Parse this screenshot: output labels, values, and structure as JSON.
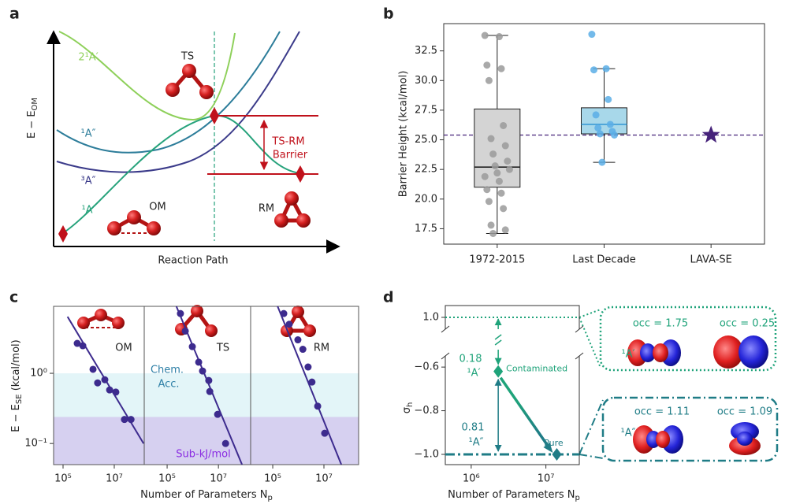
{
  "chart_data": [
    {
      "type": "diagram",
      "panel": "a",
      "xlabel": "Reaction Path",
      "ylabel": [
        "E − E",
        "OM"
      ],
      "state_labels": [
        "2¹A′",
        "¹A″",
        "³A″",
        "¹A′"
      ],
      "structure_labels": [
        "TS",
        "OM",
        "RM"
      ],
      "annotation": [
        "TS-RM",
        "Barrier"
      ]
    },
    {
      "type": "box",
      "panel": "b",
      "ylabel": "Barrier Height (kcal/mol)",
      "categories": [
        "1972-2015",
        "Last Decade",
        "LAVA-SE"
      ],
      "ylim": [
        16.2,
        34.8
      ],
      "yticks": [
        17.5,
        {
          "value": 20,
          "label": "20.0"
        },
        22.5,
        {
          "value": 25,
          "label": "25.0"
        },
        27.5,
        {
          "value": 30,
          "label": "30.0"
        },
        32.5
      ],
      "boxes": [
        {
          "whislo": 17.1,
          "q1": 21.0,
          "med": 22.7,
          "q3": 27.6,
          "whishi": 33.8,
          "fill": "#d4d4d4",
          "median_color": "#222222",
          "point_color": "#9a9a9a",
          "points": [
            33.8,
            33.7,
            31.3,
            31.0,
            30.0,
            26.2,
            25.1,
            24.5,
            23.8,
            23.2,
            22.8,
            22.5,
            22.2,
            21.9,
            21.5,
            20.8,
            20.5,
            19.8,
            19.2,
            17.8,
            17.4,
            17.1
          ]
        },
        {
          "whislo": 23.1,
          "q1": 25.5,
          "med": 26.3,
          "q3": 27.7,
          "whishi": 31.0,
          "fill": "#a8d8ea",
          "median_color": "#3a9bd5",
          "point_color": "#5aaee6",
          "points": [
            33.9,
            31.0,
            30.9,
            28.4,
            27.1,
            26.3,
            26.0,
            25.7,
            25.5,
            25.4,
            23.1
          ]
        }
      ],
      "star": {
        "value": 25.4,
        "color": "#46237a"
      },
      "reference_line_color": "#46237a"
    },
    {
      "type": "scatter",
      "panel": "c",
      "xlabel": [
        "Number of Parameters N",
        "p"
      ],
      "ylabel": [
        "E − E",
        "SE",
        " (kcal/mol)"
      ],
      "log_x": true,
      "log_y": true,
      "color": "#3d2b8e",
      "ylim": [
        0.05,
        9
      ],
      "yticks": [
        {
          "value": 1,
          "label": "10⁰"
        },
        {
          "value": 0.1,
          "label": "10⁻¹"
        }
      ],
      "bands": [
        {
          "label": [
            "Chem.",
            "Acc."
          ],
          "lower": 0.239,
          "upper": 1,
          "color": "#e3f5f8",
          "label_color": "#2d7fa6"
        },
        {
          "label": "Sub-kJ/mol",
          "upper": 0.239,
          "color": "#d6d0f0",
          "label_color": "#8a2be2"
        }
      ],
      "panels": [
        {
          "title": "OM",
          "xlim": [
            42700,
            148000000
          ],
          "xticks": [
            {
              "value": 100000,
              "label": "10⁵"
            },
            {
              "value": 10000000,
              "label": "10⁷"
            }
          ],
          "x": [
            358000,
            590000,
            1480000,
            2240000,
            4270000,
            6600000,
            11500000,
            25000000,
            45000000
          ],
          "values": [
            2.67,
            2.47,
            1.14,
            0.73,
            0.81,
            0.58,
            0.54,
            0.22,
            0.22
          ],
          "fit": {
            "x": [
              150000,
              140000000
            ],
            "y": [
              6.4,
              0.1
            ]
          }
        },
        {
          "title": "TS",
          "xlim": [
            12800,
            180000000
          ],
          "xticks": [
            {
              "value": 100000,
              "label": "10⁵"
            },
            {
              "value": 10000000,
              "label": "10⁷"
            }
          ],
          "x": [
            330000,
            510000,
            960000,
            1700000,
            2400000,
            4200000,
            4600000,
            9300000,
            19000000
          ],
          "values": [
            7.1,
            4.0,
            2.4,
            1.44,
            1.08,
            0.79,
            0.55,
            0.26,
            0.1
          ],
          "fit": {
            "x": [
              176000,
              83000000
            ],
            "y": [
              11.4,
              0.05
            ]
          }
        },
        {
          "title": "RM",
          "xlim": [
            13700,
            226000000
          ],
          "xticks": [
            {
              "value": 100000,
              "label": "10⁵"
            },
            {
              "value": 10000000,
              "label": "10⁷"
            }
          ],
          "x": [
            270000,
            440000,
            960000,
            1500000,
            2400000,
            3400000,
            5700000,
            10700000
          ],
          "values": [
            7.1,
            5.0,
            3.0,
            2.2,
            1.23,
            0.75,
            0.34,
            0.14
          ],
          "fit": {
            "x": [
              130000,
              48000000
            ],
            "y": [
              10.6,
              0.05
            ]
          }
        }
      ]
    },
    {
      "type": "broken-scatter",
      "panel": "d",
      "xlabel": [
        "Number of Parameters N",
        "p"
      ],
      "ylabel": [
        "σ",
        "h"
      ],
      "log_x": true,
      "xlim": [
        450000,
        28000000
      ],
      "xticks": [
        {
          "value": 1000000,
          "label": "10⁶"
        },
        {
          "value": 10000000,
          "label": "10⁷"
        }
      ],
      "ylim_upper": [
        0.95,
        1.05
      ],
      "yticks_upper": [
        {
          "value": 1,
          "label": "1.0"
        }
      ],
      "ylim": [
        -1.047,
        -0.549
      ],
      "yticks": [
        {
          "value": -0.6,
          "label": "−0.6"
        },
        {
          "value": -0.8,
          "label": "−0.8"
        },
        {
          "value": -1,
          "label": "−1.0"
        }
      ],
      "x": [
        2300000,
        14000000
      ],
      "values": [
        -0.62,
        -1.0
      ],
      "point_labels": [
        "Contaminated",
        "Pure"
      ],
      "colors": [
        "#1fa37a",
        "#1f7c86"
      ],
      "hlines": [
        {
          "value": 1,
          "color": "#1fa37a",
          "style": "dotted"
        },
        {
          "value": -1,
          "color": "#1f7c86",
          "style": "dashdot"
        }
      ],
      "annotations": [
        {
          "text": "0.18",
          "state": "¹A′",
          "color": "#1fa37a"
        },
        {
          "text": "0.81",
          "state": "¹A″",
          "color": "#1f7c86"
        }
      ],
      "insets": [
        {
          "state": "¹A′",
          "occupations": [
            "occ = 1.75",
            "occ = 0.25"
          ]
        },
        {
          "state": "¹A″",
          "occupations": [
            "occ = 1.11",
            "occ = 1.09"
          ]
        }
      ]
    }
  ]
}
